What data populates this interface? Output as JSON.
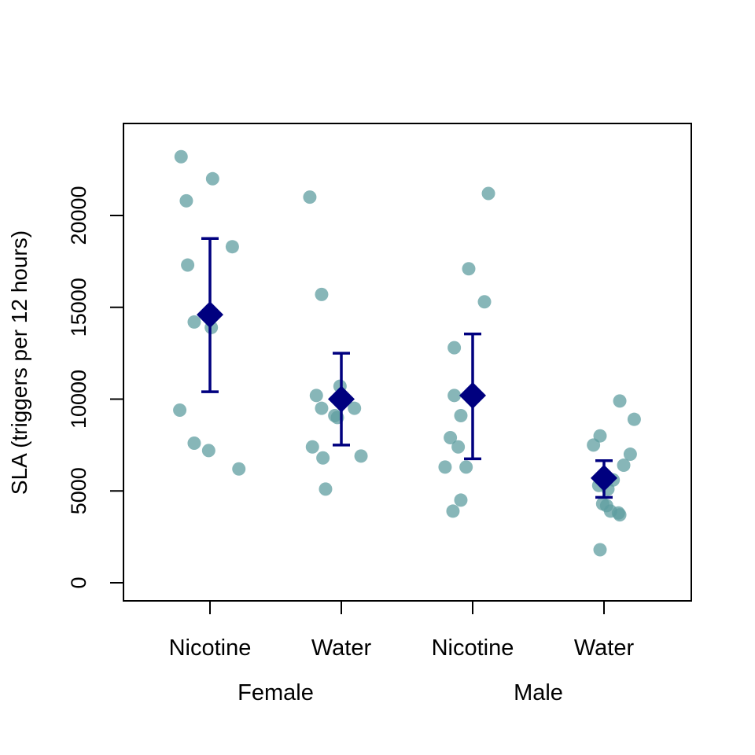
{
  "chart_data": {
    "type": "scatter",
    "title": "",
    "xlabel": "",
    "ylabel": "SLA (triggers per 12 hours)",
    "ylim": [
      -1000,
      25800
    ],
    "yticks": [
      0,
      5000,
      10000,
      15000,
      20000
    ],
    "grid": false,
    "legend": "none",
    "categories": [
      "Nicotine",
      "Water",
      "Nicotine",
      "Water"
    ],
    "groups": [
      {
        "label": "Female",
        "categories": [
          0,
          1
        ]
      },
      {
        "label": "Male",
        "categories": [
          2,
          3
        ]
      }
    ],
    "colors": {
      "points": "#5f9ea0",
      "mean": "#00007f",
      "errorbar": "#00007f",
      "axis": "#000000"
    },
    "points": [
      {
        "category": 0,
        "offset": -0.22,
        "y": 23200
      },
      {
        "category": 0,
        "offset": 0.02,
        "y": 22000
      },
      {
        "category": 0,
        "offset": -0.18,
        "y": 20800
      },
      {
        "category": 0,
        "offset": 0.17,
        "y": 18300
      },
      {
        "category": 0,
        "offset": -0.17,
        "y": 17300
      },
      {
        "category": 0,
        "offset": -0.12,
        "y": 14200
      },
      {
        "category": 0,
        "offset": 0.01,
        "y": 13900
      },
      {
        "category": 0,
        "offset": -0.23,
        "y": 9400
      },
      {
        "category": 0,
        "offset": -0.12,
        "y": 7600
      },
      {
        "category": 0,
        "offset": -0.01,
        "y": 7200
      },
      {
        "category": 0,
        "offset": 0.22,
        "y": 6200
      },
      {
        "category": 1,
        "offset": -0.24,
        "y": 21000
      },
      {
        "category": 1,
        "offset": -0.15,
        "y": 15700
      },
      {
        "category": 1,
        "offset": -0.01,
        "y": 10700
      },
      {
        "category": 1,
        "offset": -0.19,
        "y": 10200
      },
      {
        "category": 1,
        "offset": -0.15,
        "y": 9500
      },
      {
        "category": 1,
        "offset": 0.1,
        "y": 9500
      },
      {
        "category": 1,
        "offset": -0.05,
        "y": 9100
      },
      {
        "category": 1,
        "offset": -0.03,
        "y": 9000
      },
      {
        "category": 1,
        "offset": -0.22,
        "y": 7400
      },
      {
        "category": 1,
        "offset": -0.14,
        "y": 6800
      },
      {
        "category": 1,
        "offset": 0.15,
        "y": 6900
      },
      {
        "category": 1,
        "offset": -0.12,
        "y": 5100
      },
      {
        "category": 2,
        "offset": 0.12,
        "y": 21200
      },
      {
        "category": 2,
        "offset": -0.03,
        "y": 17100
      },
      {
        "category": 2,
        "offset": 0.09,
        "y": 15300
      },
      {
        "category": 2,
        "offset": -0.14,
        "y": 12800
      },
      {
        "category": 2,
        "offset": -0.14,
        "y": 10200
      },
      {
        "category": 2,
        "offset": -0.09,
        "y": 9100
      },
      {
        "category": 2,
        "offset": -0.17,
        "y": 7900
      },
      {
        "category": 2,
        "offset": -0.11,
        "y": 7400
      },
      {
        "category": 2,
        "offset": -0.21,
        "y": 6300
      },
      {
        "category": 2,
        "offset": -0.05,
        "y": 6300
      },
      {
        "category": 2,
        "offset": -0.09,
        "y": 4500
      },
      {
        "category": 2,
        "offset": -0.15,
        "y": 3900
      },
      {
        "category": 3,
        "offset": 0.12,
        "y": 9900
      },
      {
        "category": 3,
        "offset": 0.23,
        "y": 8900
      },
      {
        "category": 3,
        "offset": -0.03,
        "y": 8000
      },
      {
        "category": 3,
        "offset": -0.08,
        "y": 7500
      },
      {
        "category": 3,
        "offset": 0.2,
        "y": 7000
      },
      {
        "category": 3,
        "offset": 0.15,
        "y": 6400
      },
      {
        "category": 3,
        "offset": 0.07,
        "y": 5600
      },
      {
        "category": 3,
        "offset": -0.04,
        "y": 5300
      },
      {
        "category": 3,
        "offset": 0.03,
        "y": 5100
      },
      {
        "category": 3,
        "offset": -0.01,
        "y": 4300
      },
      {
        "category": 3,
        "offset": 0.02,
        "y": 4200
      },
      {
        "category": 3,
        "offset": 0.05,
        "y": 3900
      },
      {
        "category": 3,
        "offset": 0.11,
        "y": 3800
      },
      {
        "category": 3,
        "offset": 0.12,
        "y": 3700
      },
      {
        "category": 3,
        "offset": -0.03,
        "y": 1800
      }
    ],
    "means": [
      {
        "category": 0,
        "mean": 14600,
        "lower": 10400,
        "upper": 18750
      },
      {
        "category": 1,
        "mean": 10000,
        "lower": 7500,
        "upper": 12500
      },
      {
        "category": 2,
        "mean": 10200,
        "lower": 6750,
        "upper": 13550
      },
      {
        "category": 3,
        "mean": 5700,
        "lower": 4650,
        "upper": 6650
      }
    ]
  }
}
